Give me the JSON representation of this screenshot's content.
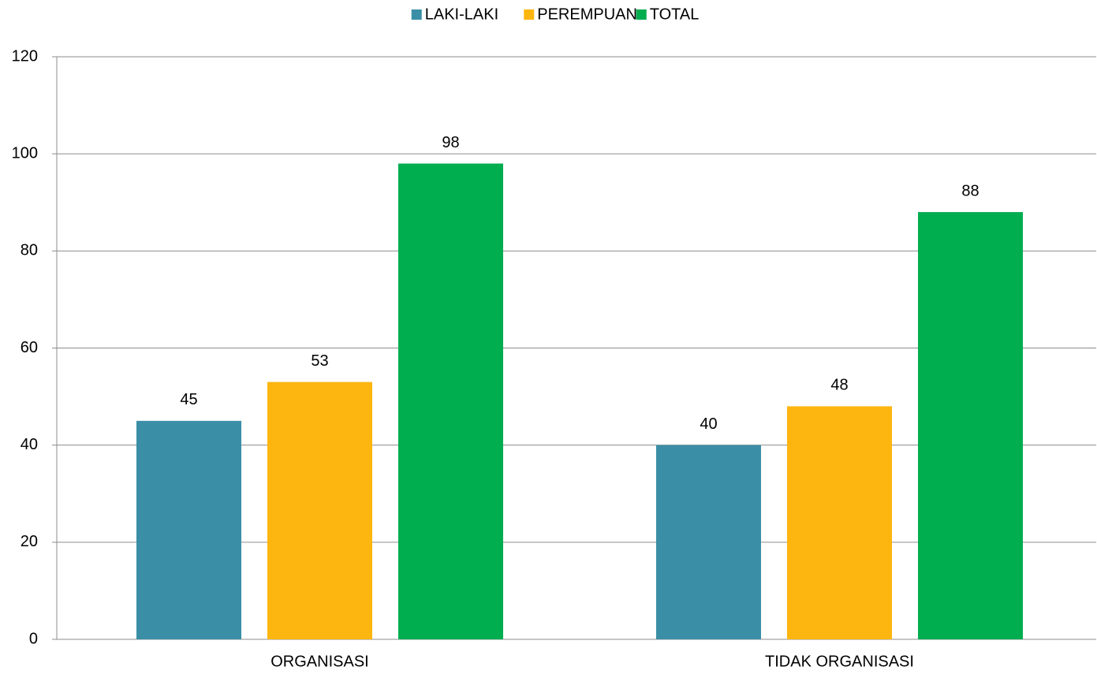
{
  "chart_data": {
    "type": "bar",
    "categories": [
      "ORGANISASI",
      "TIDAK ORGANISASI"
    ],
    "series": [
      {
        "name": "LAKI-LAKI",
        "color": "#3a8fa6",
        "values": [
          45,
          40
        ]
      },
      {
        "name": "PEREMPUAN",
        "color": "#fdb50f",
        "values": [
          53,
          48
        ]
      },
      {
        "name": "TOTAL",
        "color": "#00ad4f",
        "values": [
          98,
          88
        ]
      }
    ],
    "ylim": [
      0,
      120
    ],
    "yticks": [
      0,
      20,
      40,
      60,
      80,
      100,
      120
    ],
    "grid": true,
    "legend": "top"
  }
}
